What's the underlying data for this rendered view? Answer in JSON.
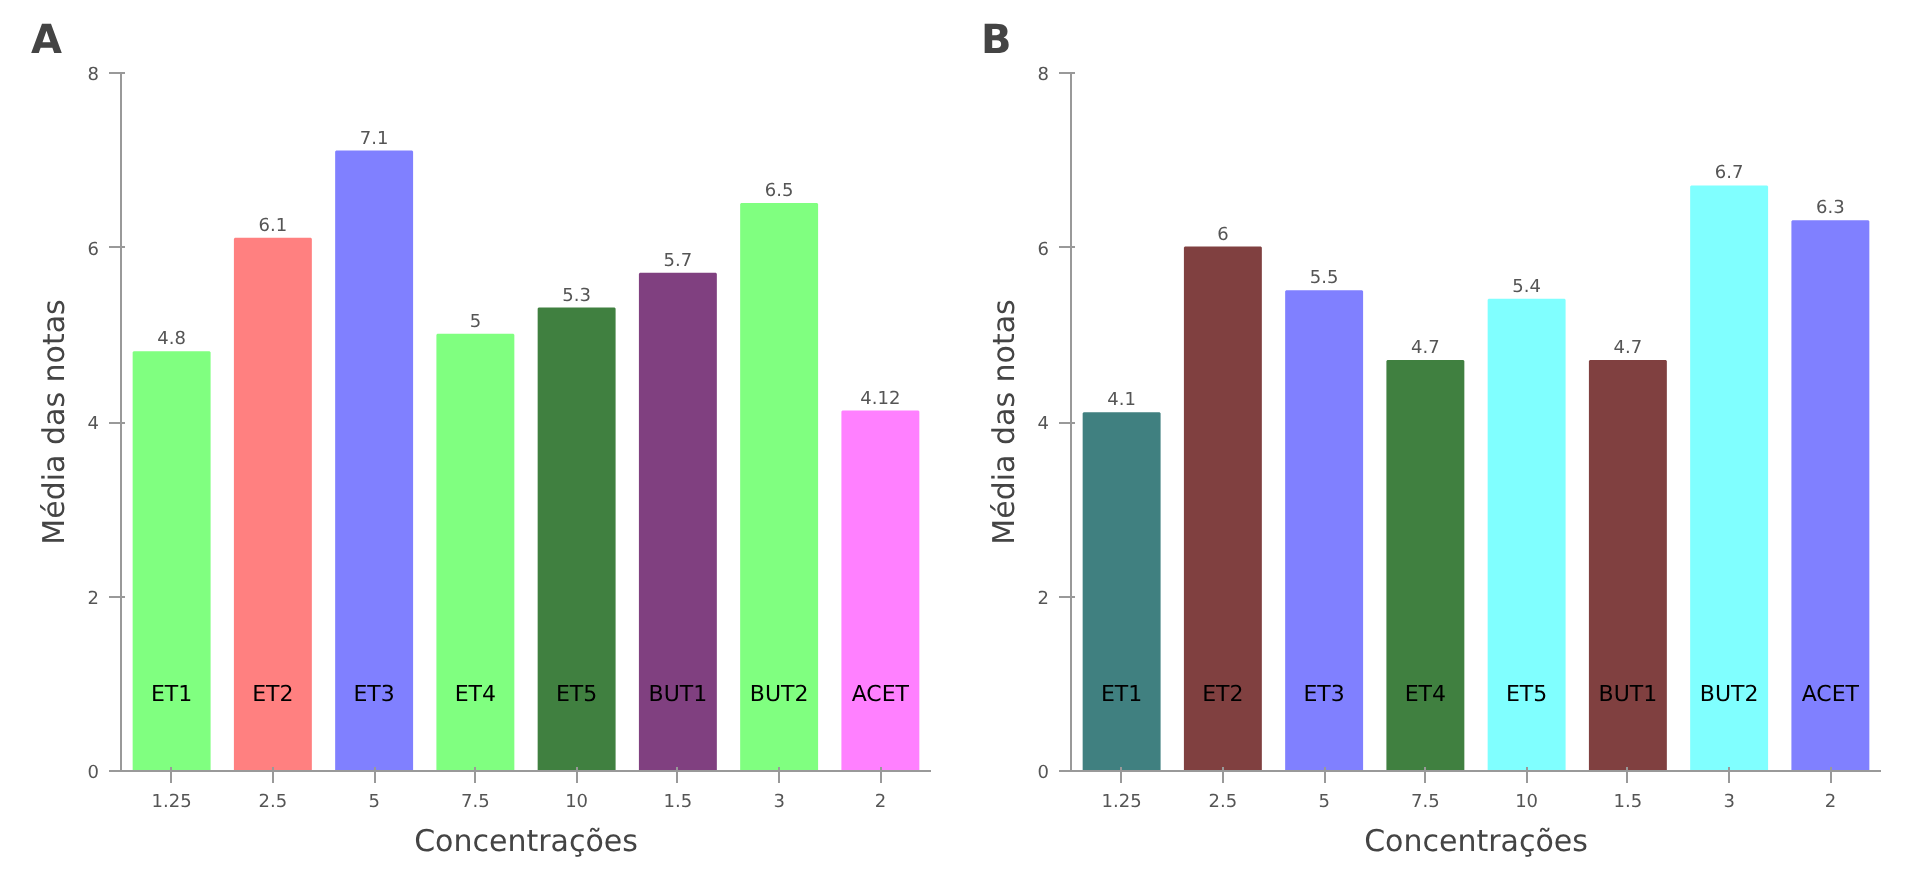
{
  "chart_data": [
    {
      "type": "bar",
      "title": "A",
      "xlabel": "Concentrações",
      "ylabel": "Média das notas",
      "categories": [
        "1.25",
        "2.5",
        "5",
        "7.5",
        "10",
        "1.5",
        "3",
        "2"
      ],
      "values": [
        4.8,
        6.1,
        7.1,
        5,
        5.3,
        5.7,
        6.5,
        4.12
      ],
      "colors": [
        "#80ff80",
        "#ff8080",
        "#8080ff",
        "#80ff80",
        "#408040",
        "#804080",
        "#80ff80",
        "#ff80ff"
      ],
      "ylim": [
        0,
        8
      ],
      "yticks": [
        0,
        2,
        4,
        6,
        8
      ],
      "grid": false,
      "data_labels": true,
      "annotations": [
        "ET1",
        "ET2",
        "ET3",
        "ET4",
        "ET5",
        "BUT1",
        "BUT2",
        "ACET"
      ]
    },
    {
      "type": "bar",
      "title": "B",
      "xlabel": "Concentrações",
      "ylabel": "Média das notas",
      "categories": [
        "1.25",
        "2.5",
        "5",
        "7.5",
        "10",
        "1.5",
        "3",
        "2"
      ],
      "values": [
        4.1,
        6,
        5.5,
        4.7,
        5.4,
        4.7,
        6.7,
        6.3
      ],
      "colors": [
        "#408080",
        "#804040",
        "#8080ff",
        "#408040",
        "#80ffff",
        "#804040",
        "#80ffff",
        "#8080ff"
      ],
      "ylim": [
        0,
        8
      ],
      "yticks": [
        0,
        2,
        4,
        6,
        8
      ],
      "grid": false,
      "data_labels": true,
      "annotations": [
        "ET1",
        "ET2",
        "ET3",
        "ET4",
        "ET5",
        "BUT1",
        "BUT2",
        "ACET"
      ]
    }
  ]
}
